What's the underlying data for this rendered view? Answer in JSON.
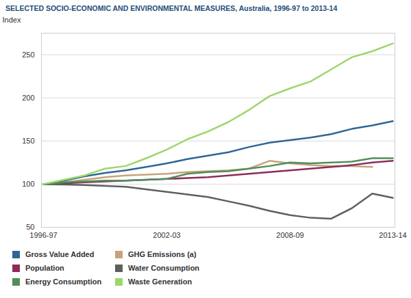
{
  "chart_data": {
    "type": "line",
    "title": "SELECTED SOCIO-ECONOMIC AND ENVIRONMENTAL MEASURES, Australia, 1996-97 to 2013-14",
    "ylabel": "Index",
    "categories": [
      "1996-97",
      null,
      null,
      null,
      null,
      null,
      "2002-03",
      null,
      null,
      null,
      null,
      null,
      "2008-09",
      null,
      null,
      null,
      null,
      "2013-14"
    ],
    "series": [
      {
        "name": "Gross Value Added",
        "color": "#2e6596",
        "values": [
          100,
          104,
          109,
          113,
          116,
          120,
          124,
          129,
          133,
          137,
          143,
          148,
          151,
          154,
          158,
          164,
          168,
          173
        ]
      },
      {
        "name": "GHG Emissions (a)",
        "color": "#c8a27a",
        "values": [
          100,
          102,
          105,
          108,
          110,
          111,
          112,
          114,
          115,
          116,
          118,
          127,
          124,
          122,
          121,
          121,
          120,
          null
        ]
      },
      {
        "name": "Population",
        "color": "#8e2a5a",
        "values": [
          100,
          101,
          102,
          103,
          104,
          105,
          106,
          107,
          108,
          110,
          112,
          114,
          116,
          118,
          120,
          122,
          125,
          127
        ]
      },
      {
        "name": "Water Consumption",
        "color": "#5e5e5e",
        "values": [
          100,
          99.5,
          99,
          98,
          97,
          94,
          91,
          88,
          85,
          80,
          75,
          69,
          64,
          61,
          60,
          72,
          89,
          84
        ]
      },
      {
        "name": "Energy Consumption",
        "color": "#4f8f5a",
        "values": [
          100,
          102,
          103,
          104,
          104,
          105,
          106,
          112,
          114,
          115,
          118,
          121,
          125,
          124,
          125,
          126,
          130,
          130
        ]
      },
      {
        "name": "Waste Generation",
        "color": "#9dd66c",
        "values": [
          100,
          105,
          110,
          118,
          121,
          130,
          140,
          152,
          161,
          172,
          186,
          202,
          211,
          219,
          233,
          247,
          254,
          263
        ]
      }
    ],
    "ylim": [
      50,
      275
    ],
    "yticks": [
      50,
      100,
      150,
      200,
      250
    ],
    "grid": true,
    "legend": "bottom"
  }
}
